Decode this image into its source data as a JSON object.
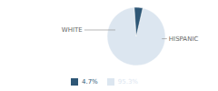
{
  "chart_data": {
    "type": "pie",
    "categories": [
      "WHITE",
      "HISPANIC"
    ],
    "values": [
      95.3,
      4.7
    ],
    "value_labels": [
      "95.3%",
      "4.7%"
    ],
    "colors": [
      "#dce6f0",
      "#2e5776"
    ],
    "legend": "bottom"
  }
}
